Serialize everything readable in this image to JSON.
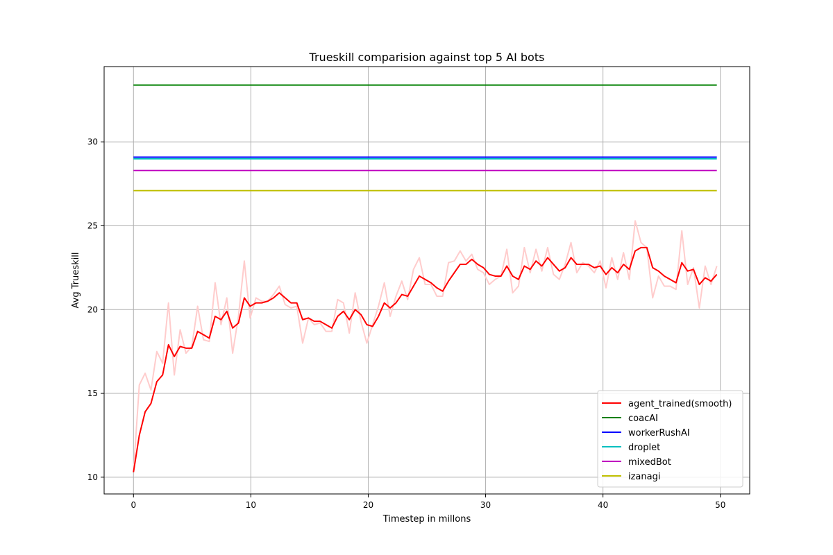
{
  "chart_data": {
    "type": "line",
    "title": "Trueskill comparision against top 5 AI bots",
    "xlabel": "Timestep in millons",
    "ylabel": "Avg Trueskill",
    "xlim": [
      -2.5,
      52.5
    ],
    "ylim": [
      9.0,
      34.5
    ],
    "xticks": [
      0,
      10,
      20,
      30,
      40,
      50
    ],
    "yticks": [
      10,
      15,
      20,
      25,
      30
    ],
    "grid": true,
    "legend_position": "bottom-right",
    "raw_series": {
      "color": "#ffcccc",
      "x_start": 0,
      "x_end": 49.7,
      "values": [
        10.3,
        15.5,
        16.2,
        15.2,
        17.5,
        16.8,
        20.4,
        16.1,
        18.8,
        17.4,
        17.8,
        20.2,
        18.2,
        18.1,
        21.6,
        19.1,
        20.7,
        17.4,
        19.6,
        22.9,
        19.5,
        20.7,
        20.5,
        20.5,
        20.9,
        21.4,
        20.3,
        20.1,
        20.2,
        18.0,
        19.5,
        19.1,
        19.2,
        18.7,
        18.7,
        20.6,
        20.4,
        18.6,
        21.0,
        19.3,
        18.0,
        19.1,
        20.2,
        21.6,
        19.6,
        20.8,
        21.7,
        20.6,
        22.4,
        23.1,
        21.5,
        21.5,
        20.8,
        20.8,
        22.8,
        22.9,
        23.5,
        22.9,
        23.3,
        22.4,
        22.2,
        21.5,
        21.8,
        22.0,
        23.6,
        21.0,
        21.4,
        23.7,
        22.2,
        23.6,
        22.3,
        23.7,
        22.1,
        21.8,
        22.7,
        24.0,
        22.2,
        22.8,
        22.6,
        22.2,
        22.9,
        21.3,
        23.1,
        21.8,
        23.4,
        21.8,
        25.3,
        24.0,
        23.7,
        20.7,
        22.0,
        21.4,
        21.4,
        21.2,
        24.7,
        21.5,
        22.5,
        20.1,
        22.6,
        21.5,
        22.6
      ]
    },
    "series": [
      {
        "name": "agent_trained(smooth)",
        "color": "#ff0000",
        "x_start": 0,
        "x_end": 49.7,
        "values": [
          10.3,
          12.5,
          13.9,
          14.4,
          15.7,
          16.1,
          17.9,
          17.2,
          17.8,
          17.7,
          17.7,
          18.7,
          18.5,
          18.3,
          19.6,
          19.4,
          19.9,
          18.9,
          19.2,
          20.7,
          20.2,
          20.4,
          20.4,
          20.5,
          20.7,
          21.0,
          20.7,
          20.4,
          20.4,
          19.4,
          19.5,
          19.3,
          19.3,
          19.1,
          18.9,
          19.6,
          19.9,
          19.4,
          20.0,
          19.7,
          19.1,
          19.0,
          19.6,
          20.4,
          20.1,
          20.4,
          20.9,
          20.8,
          21.4,
          22.0,
          21.8,
          21.6,
          21.3,
          21.1,
          21.7,
          22.2,
          22.7,
          22.7,
          23.0,
          22.7,
          22.5,
          22.1,
          22.0,
          22.0,
          22.6,
          22.0,
          21.8,
          22.6,
          22.4,
          22.9,
          22.6,
          23.1,
          22.7,
          22.3,
          22.5,
          23.1,
          22.7,
          22.7,
          22.7,
          22.5,
          22.6,
          22.1,
          22.5,
          22.2,
          22.7,
          22.4,
          23.5,
          23.7,
          23.7,
          22.5,
          22.3,
          22.0,
          21.8,
          21.6,
          22.8,
          22.3,
          22.4,
          21.5,
          21.9,
          21.7,
          22.1
        ]
      },
      {
        "name": "coacAI",
        "color": "#008000",
        "x_start": 0,
        "x_end": 49.7,
        "values": [
          33.4,
          33.4
        ]
      },
      {
        "name": "workerRushAI",
        "color": "#0000ff",
        "x_start": 0,
        "x_end": 49.7,
        "values": [
          29.1,
          29.1
        ]
      },
      {
        "name": "droplet",
        "color": "#00bfbf",
        "x_start": 0,
        "x_end": 49.7,
        "values": [
          29.0,
          29.0
        ]
      },
      {
        "name": "mixedBot",
        "color": "#bf00bf",
        "x_start": 0,
        "x_end": 49.7,
        "values": [
          28.3,
          28.3
        ]
      },
      {
        "name": "izanagi",
        "color": "#bfbf00",
        "x_start": 0,
        "x_end": 49.7,
        "values": [
          27.1,
          27.1
        ]
      }
    ]
  }
}
